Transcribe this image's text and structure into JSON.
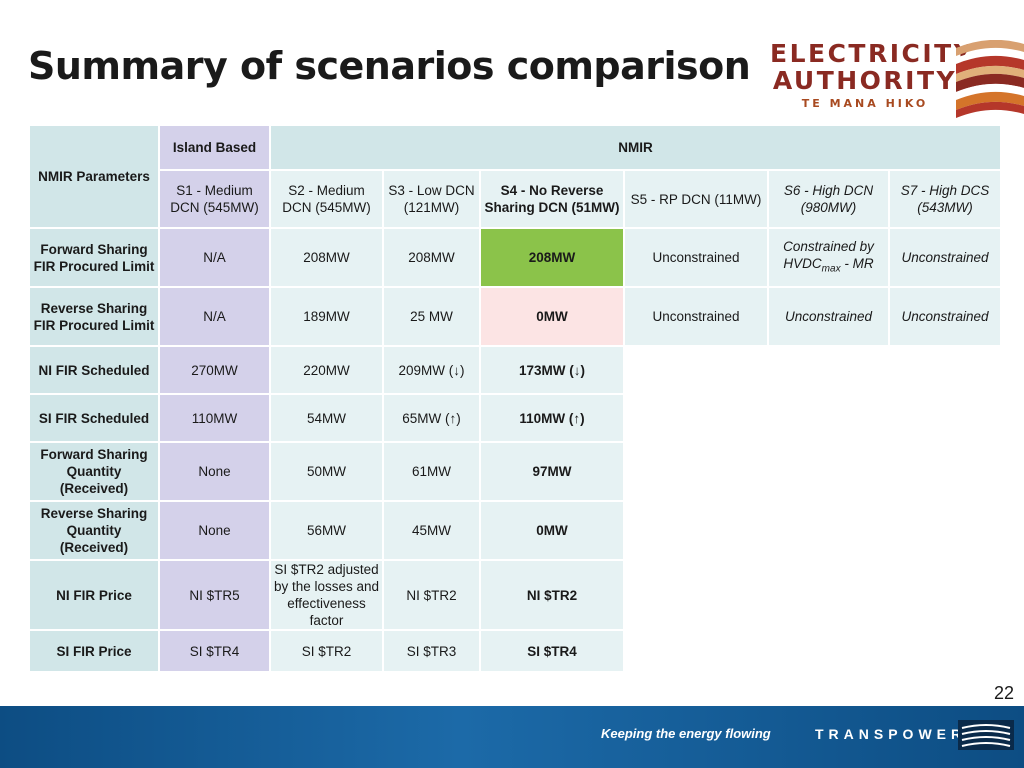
{
  "slide": {
    "title": "Summary of scenarios comparison",
    "page_number": "22"
  },
  "logo": {
    "line1": "ELECTRICITY",
    "line2": "AUTHORITY",
    "line3": "TE MANA HIKO"
  },
  "footer": {
    "tagline": "Keeping the energy flowing",
    "brand": "TRANSPOWER"
  },
  "table": {
    "param_title": "NMIR Parameters",
    "island_based": "Island Based",
    "nmir_group": "NMIR",
    "scenarios": [
      "S1 - Medium DCN (545MW)",
      "S2 - Medium DCN (545MW)",
      "S3 - Low DCN (121MW)",
      "S4 - No Reverse Sharing DCN (51MW)",
      "S5 - RP DCN (11MW)",
      "S6 - High DCN (980MW)",
      "S7 - High DCS (543MW)"
    ],
    "rows": [
      {
        "label": "Forward Sharing FIR Procured Limit",
        "values": [
          "N/A",
          "208MW",
          "208MW",
          "208MW",
          "Unconstrained",
          "Constrained by HVDC",
          "Unconstrained"
        ]
      },
      {
        "label": "Reverse Sharing FIR Procured Limit",
        "values": [
          "N/A",
          "189MW",
          "25 MW",
          "0MW",
          "Unconstrained",
          "Unconstrained",
          "Unconstrained"
        ]
      },
      {
        "label": "NI FIR Scheduled",
        "values": [
          "270MW",
          "220MW",
          "209MW (↓)",
          "173MW (↓)"
        ]
      },
      {
        "label": "SI FIR Scheduled",
        "values": [
          "110MW",
          "54MW",
          "65MW (↑)",
          "110MW (↑)"
        ]
      },
      {
        "label": "Forward Sharing Quantity (Received)",
        "values": [
          "None",
          "50MW",
          "61MW",
          "97MW"
        ]
      },
      {
        "label": "Reverse Sharing Quantity (Received)",
        "values": [
          "None",
          "56MW",
          "45MW",
          "0MW"
        ]
      },
      {
        "label": "NI FIR Price",
        "values": [
          "NI $TR5",
          "SI $TR2 adjusted by the losses and effectiveness factor",
          "NI $TR2",
          "NI $TR2"
        ]
      },
      {
        "label": "SI FIR Price",
        "values": [
          "SI $TR4",
          "SI $TR2",
          "SI $TR3",
          "SI $TR4"
        ]
      }
    ],
    "s6_sub": "max",
    "s6_suffix": " - MR"
  }
}
